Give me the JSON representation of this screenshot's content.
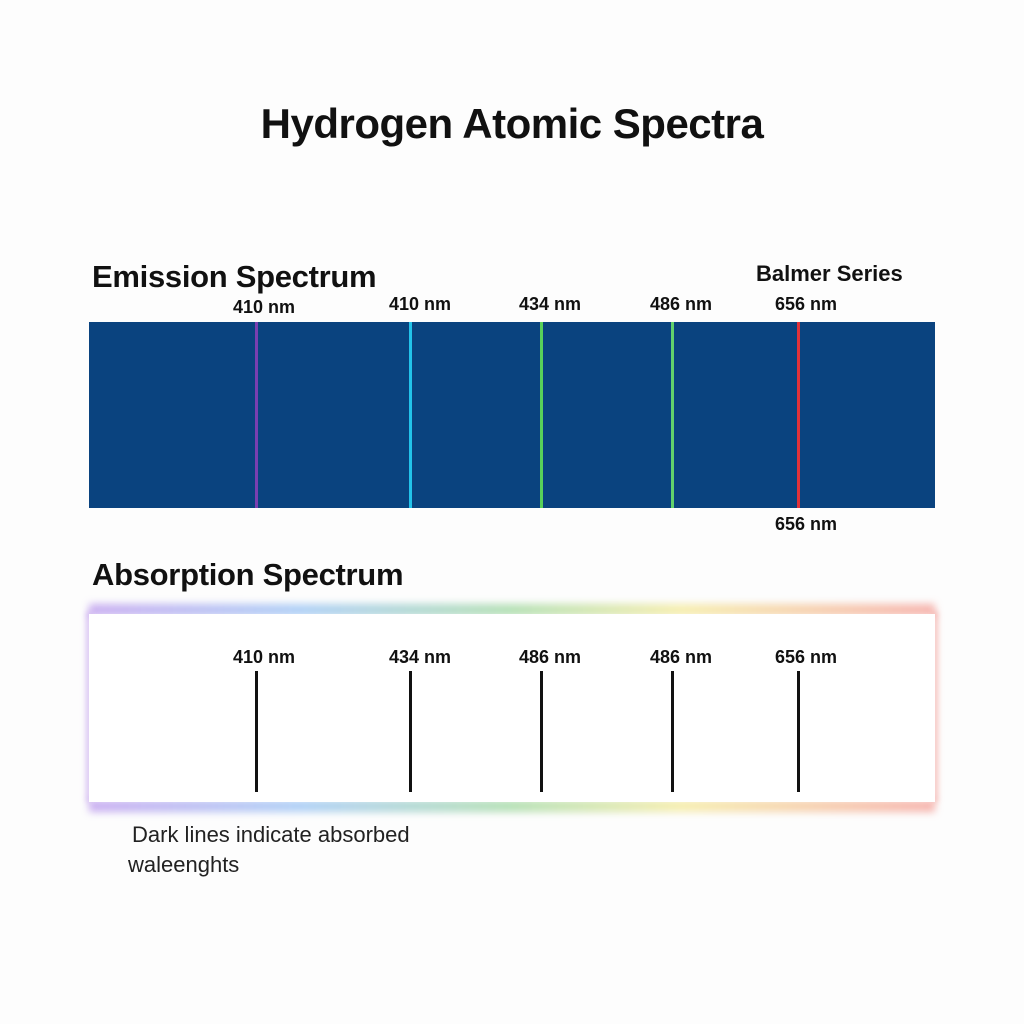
{
  "title": "Hydrogen Atomic Spectra",
  "emission": {
    "heading": "Emission Spectrum",
    "series_label": "Balmer Series",
    "band_color": "#0a437f",
    "top_labels": [
      "410 nm",
      "410 nm",
      "434 nm",
      "486 nm",
      "656 nm"
    ],
    "bottom_label": "656 nm",
    "line_colors": [
      "#7a3fb0",
      "#22c3ea",
      "#58d05a",
      "#62d26c",
      "#e0323a"
    ]
  },
  "absorption": {
    "heading": "Absorption Spectrum",
    "labels": [
      "410 nm",
      "434 nm",
      "486 nm",
      "486 nm",
      "656 nm"
    ],
    "line_color": "#111111"
  },
  "note": {
    "line1": "Dark lines indicate absorbed",
    "line2": "waleenghts"
  }
}
